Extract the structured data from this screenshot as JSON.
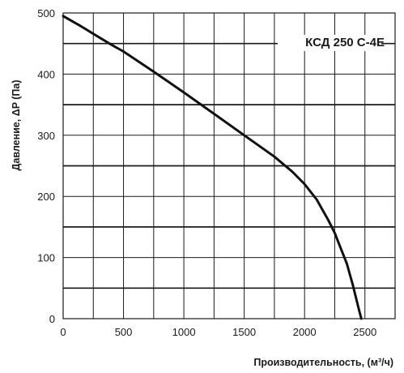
{
  "chart_data": {
    "type": "line",
    "title": "",
    "xlabel": "Производительность, (м³/ч)",
    "ylabel": "Давление, ΔP (Па)",
    "xlim": [
      0,
      2750
    ],
    "ylim": [
      0,
      500
    ],
    "x_ticks": [
      "0",
      "500",
      "1000",
      "1500",
      "2000",
      "2500"
    ],
    "y_ticks": [
      "0",
      "100",
      "200",
      "300",
      "400",
      "500"
    ],
    "x_minor_step": 250,
    "y_minor_step": 50,
    "grid": true,
    "legend_position": "top-right",
    "series": [
      {
        "name": "КСД 250 С-4Е",
        "color": "#111111",
        "x": [
          0,
          150,
          300,
          400,
          500,
          750,
          1000,
          1250,
          1500,
          1750,
          1900,
          2000,
          2100,
          2200,
          2250,
          2300,
          2350,
          2400,
          2450,
          2470
        ],
        "y": [
          495,
          478,
          460,
          448,
          437,
          404,
          370,
          335,
          300,
          265,
          240,
          220,
          195,
          160,
          140,
          115,
          90,
          55,
          15,
          0
        ]
      }
    ]
  }
}
